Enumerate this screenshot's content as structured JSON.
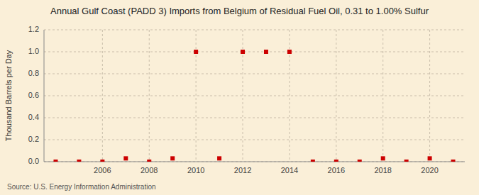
{
  "chart_data": {
    "type": "scatter",
    "title": "Annual Gulf Coast (PADD 3) Imports from Belgium of Residual Fuel Oil, 0.31 to 1.00% Sulfur",
    "ylabel": "Thousand Barrels per Day",
    "annotations": [
      "Source: U.S. Energy Information Administration"
    ],
    "x": [
      2004,
      2005,
      2006,
      2007,
      2008,
      2009,
      2010,
      2011,
      2012,
      2013,
      2014,
      2015,
      2016,
      2017,
      2018,
      2019,
      2020,
      2021
    ],
    "values": [
      0.0,
      0.0,
      0.0,
      0.03,
      0.0,
      0.03,
      1.0,
      0.03,
      1.0,
      1.0,
      1.0,
      0.0,
      0.0,
      0.0,
      0.03,
      0.0,
      0.03,
      0.0
    ],
    "color": "#cc0000",
    "marker": "square",
    "xlim": [
      2003.5,
      2021.5
    ],
    "ylim": [
      0.0,
      1.2
    ],
    "xticks": [
      2006,
      2008,
      2010,
      2012,
      2014,
      2016,
      2018,
      2020
    ],
    "yticks": [
      {
        "value": 0.0,
        "label": "0.0"
      },
      0.2,
      0.4,
      0.6,
      0.8,
      {
        "value": 1.0,
        "label": "1.0"
      },
      1.2
    ],
    "grid": true
  }
}
